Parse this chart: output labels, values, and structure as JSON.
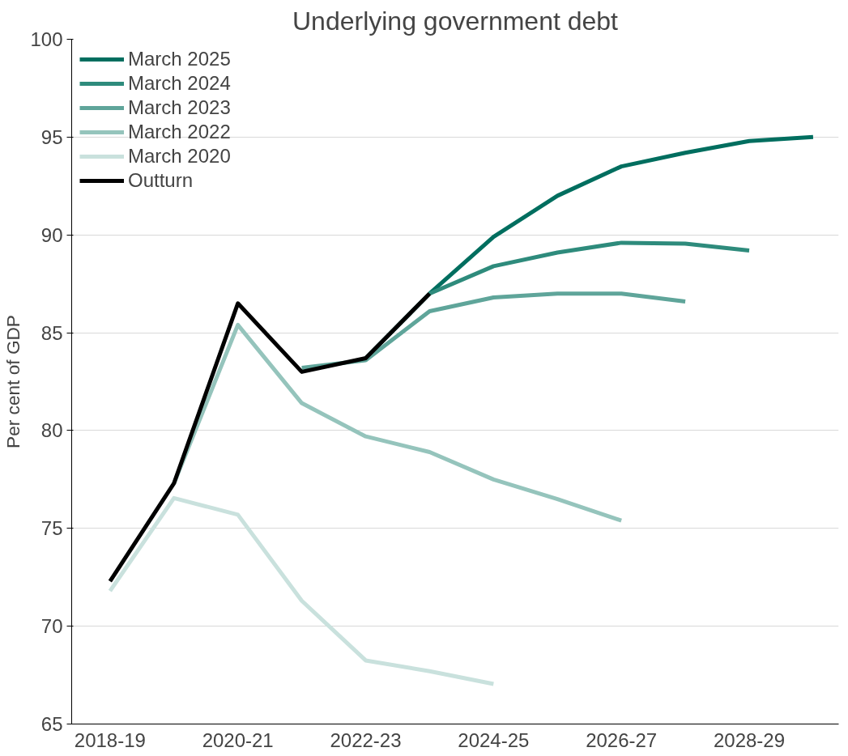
{
  "chart_data": {
    "type": "line",
    "title": "Underlying government debt",
    "ylabel": "Per cent of GDP",
    "categories": [
      "2018-19",
      null,
      "2020-21",
      null,
      "2022-23",
      null,
      "2024-25",
      null,
      "2026-27",
      null,
      "2028-29",
      null
    ],
    "series": [
      {
        "name": "March 2025",
        "color": "#006e5f",
        "values": [
          null,
          null,
          null,
          null,
          null,
          87.0,
          89.9,
          92.0,
          93.5,
          94.2,
          94.8,
          95.0
        ]
      },
      {
        "name": "March 2024",
        "color": "#2e8b7c",
        "values": [
          null,
          null,
          null,
          null,
          83.7,
          87.0,
          88.4,
          89.1,
          89.6,
          89.55,
          89.2,
          null
        ]
      },
      {
        "name": "March 2023",
        "color": "#5fa59a",
        "values": [
          null,
          null,
          null,
          83.2,
          83.6,
          86.1,
          86.8,
          87.0,
          87.0,
          86.6,
          null,
          null
        ]
      },
      {
        "name": "March 2022",
        "color": "#95c4bc",
        "values": [
          null,
          77.3,
          85.4,
          81.4,
          79.7,
          78.9,
          77.5,
          76.5,
          75.4,
          null,
          null,
          null
        ]
      },
      {
        "name": "March 2020",
        "color": "#c9e1dd",
        "values": [
          71.8,
          76.55,
          75.7,
          71.3,
          68.25,
          67.7,
          67.05,
          null,
          null,
          null,
          null,
          null
        ]
      },
      {
        "name": "Outturn",
        "color": "#000000",
        "values": [
          72.3,
          77.3,
          86.5,
          83.0,
          83.7,
          87.0,
          null,
          null,
          null,
          null,
          null,
          null
        ]
      }
    ],
    "ylim": [
      65,
      100
    ],
    "yticks": [
      65,
      70,
      75,
      80,
      85,
      90,
      95,
      100
    ],
    "grid": "y",
    "legend": "top left",
    "line_style": "solid",
    "marker": "none"
  }
}
